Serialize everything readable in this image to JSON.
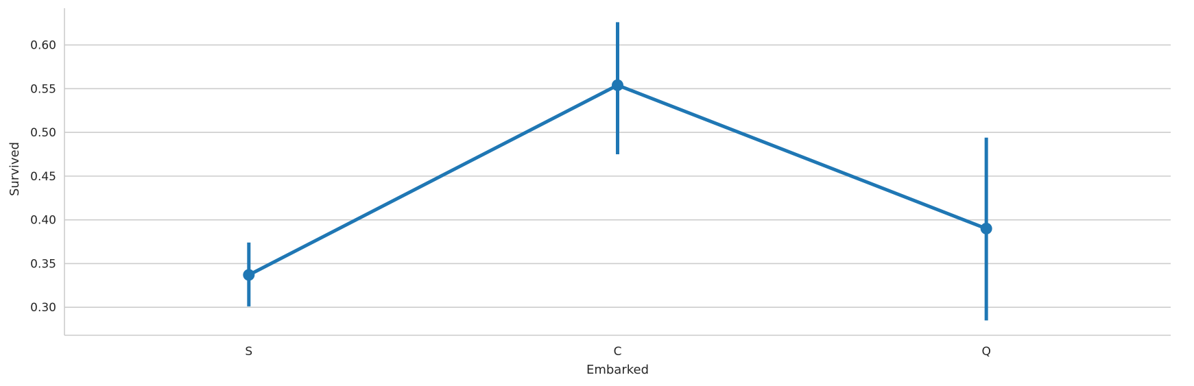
{
  "chart_data": {
    "type": "line",
    "title": "",
    "xlabel": "Embarked",
    "ylabel": "Survived",
    "categories": [
      "S",
      "C",
      "Q"
    ],
    "series": [
      {
        "values": [
          0.337,
          0.554,
          0.39
        ],
        "ci_low": [
          0.301,
          0.475,
          0.285
        ],
        "ci_high": [
          0.374,
          0.626,
          0.494
        ]
      }
    ],
    "ylim": [
      0.268,
      0.642
    ],
    "yticks": [
      0.3,
      0.35,
      0.4,
      0.45,
      0.5,
      0.55,
      0.6
    ],
    "ytick_labels": [
      "0.30",
      "0.35",
      "0.40",
      "0.45",
      "0.50",
      "0.55",
      "0.60"
    ],
    "grid": "horizontal",
    "color": "#1f77b4",
    "grid_color": "#cccccc",
    "text_color": "#262626"
  }
}
